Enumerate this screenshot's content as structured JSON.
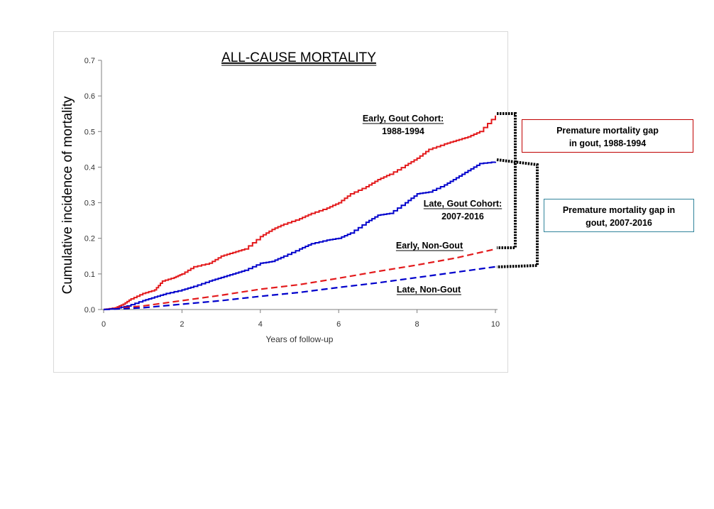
{
  "chart_data": {
    "type": "line",
    "title": "ALL-CAUSE MORTALITY",
    "xlabel": "Years of follow-up",
    "ylabel": "Cumulative incidence of mortality",
    "xlim": [
      0,
      10
    ],
    "ylim": [
      0,
      0.7
    ],
    "x_ticks": [
      "0",
      "2",
      "4",
      "6",
      "8",
      "10"
    ],
    "y_ticks": [
      "0.0",
      "0.1",
      "0.2",
      "0.3",
      "0.4",
      "0.5",
      "0.6",
      "0.7"
    ],
    "grid": false,
    "series": [
      {
        "name": "Early, Gout Cohort: 1988-1994",
        "label_lines": [
          "Early, Gout Cohort:",
          "1988-1994"
        ],
        "color": "#e31a1c",
        "style": "solid",
        "x": [
          0,
          0.3,
          0.5,
          0.7,
          1.0,
          1.3,
          1.5,
          1.8,
          2.0,
          2.3,
          2.7,
          3.0,
          3.3,
          3.6,
          4.0,
          4.3,
          4.6,
          5.0,
          5.3,
          5.7,
          6.0,
          6.3,
          6.7,
          7.0,
          7.3,
          7.7,
          8.0,
          8.3,
          8.7,
          9.0,
          9.3,
          9.6,
          10.0
        ],
        "y": [
          0,
          0.005,
          0.015,
          0.03,
          0.045,
          0.055,
          0.08,
          0.09,
          0.1,
          0.12,
          0.13,
          0.15,
          0.16,
          0.17,
          0.205,
          0.225,
          0.24,
          0.255,
          0.27,
          0.285,
          0.3,
          0.325,
          0.345,
          0.365,
          0.38,
          0.405,
          0.425,
          0.45,
          0.465,
          0.475,
          0.485,
          0.5,
          0.545
        ]
      },
      {
        "name": "Late, Gout Cohort: 2007-2016",
        "label_lines": [
          "Late, Gout Cohort:",
          "2007-2016"
        ],
        "color": "#0000cc",
        "style": "solid",
        "x": [
          0,
          0.3,
          0.6,
          1.0,
          1.3,
          1.6,
          2.0,
          2.3,
          2.7,
          3.0,
          3.3,
          3.6,
          4.0,
          4.3,
          4.6,
          5.0,
          5.3,
          5.7,
          6.0,
          6.3,
          6.7,
          7.0,
          7.3,
          7.7,
          8.0,
          8.3,
          8.7,
          9.0,
          9.3,
          9.6,
          10.0
        ],
        "y": [
          0,
          0.003,
          0.01,
          0.025,
          0.035,
          0.045,
          0.055,
          0.065,
          0.08,
          0.09,
          0.1,
          0.11,
          0.13,
          0.135,
          0.15,
          0.17,
          0.185,
          0.195,
          0.2,
          0.215,
          0.245,
          0.265,
          0.27,
          0.3,
          0.325,
          0.33,
          0.35,
          0.37,
          0.39,
          0.41,
          0.415
        ]
      },
      {
        "name": "Early, Non-Gout",
        "label_lines": [
          "Early, Non-Gout"
        ],
        "color": "#e31a1c",
        "style": "dashed",
        "x": [
          0,
          1,
          2,
          3,
          4,
          5,
          6,
          7,
          8,
          9,
          10
        ],
        "y": [
          0,
          0.01,
          0.025,
          0.04,
          0.057,
          0.07,
          0.088,
          0.107,
          0.125,
          0.145,
          0.17
        ]
      },
      {
        "name": "Late, Non-Gout",
        "label_lines": [
          "Late, Non-Gout"
        ],
        "color": "#0000cc",
        "style": "dashed",
        "x": [
          0,
          1,
          2,
          3,
          4,
          5,
          6,
          7,
          8,
          9,
          10
        ],
        "y": [
          0,
          0.005,
          0.015,
          0.025,
          0.037,
          0.048,
          0.062,
          0.075,
          0.09,
          0.105,
          0.12
        ]
      }
    ],
    "annotations": [
      {
        "text_lines": [
          "Premature mortality gap",
          "in gout, 1988-1994"
        ],
        "border_color": "#c00000",
        "bracket_from": 0.545,
        "bracket_to": 0.17
      },
      {
        "text_lines": [
          "Premature mortality gap in",
          "gout, 2007-2016"
        ],
        "border_color": "#31849b",
        "bracket_from": 0.415,
        "bracket_to": 0.12
      }
    ]
  }
}
